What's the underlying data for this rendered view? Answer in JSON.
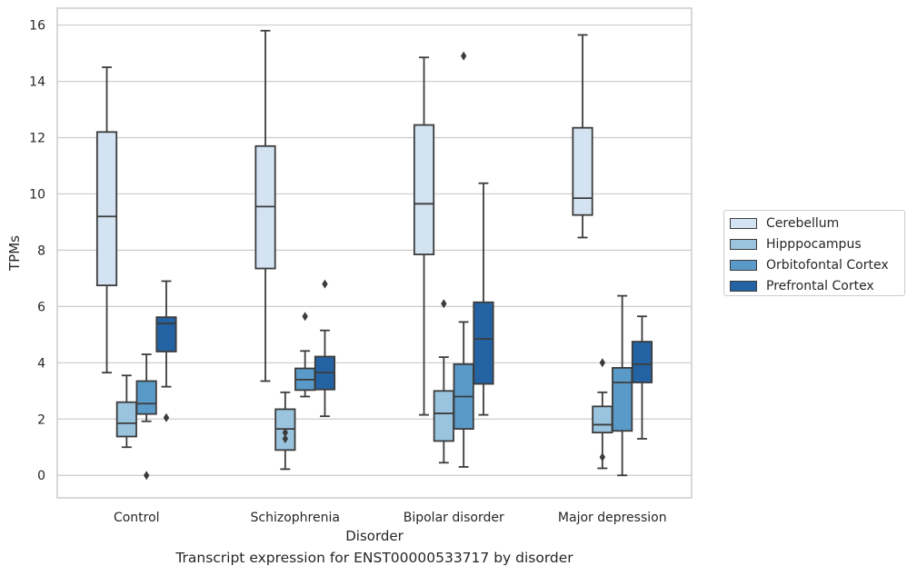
{
  "caption": "Transcript expression for ENST00000533717 by disorder",
  "chart_data": {
    "type": "box",
    "xlabel": "Disorder",
    "ylabel": "TPMs",
    "ylim": [
      -0.8,
      16.6
    ],
    "yticks": [
      0,
      2,
      4,
      6,
      8,
      10,
      12,
      14,
      16
    ],
    "grid": "horizontal",
    "legend_position": "right",
    "categories": [
      "Control",
      "Schizophrenia",
      "Bipolar disorder",
      "Major depression"
    ],
    "series": [
      {
        "name": "Cerebellum",
        "color": "#d3e3f2",
        "boxes": [
          {
            "min": 3.65,
            "q1": 6.75,
            "median": 9.2,
            "q3": 12.2,
            "max": 14.5,
            "outliers": []
          },
          {
            "min": 3.35,
            "q1": 7.35,
            "median": 9.55,
            "q3": 11.7,
            "max": 15.8,
            "outliers": []
          },
          {
            "min": 2.15,
            "q1": 7.85,
            "median": 9.65,
            "q3": 12.45,
            "max": 14.85,
            "outliers": []
          },
          {
            "min": 8.45,
            "q1": 9.25,
            "median": 9.85,
            "q3": 12.35,
            "max": 15.65,
            "outliers": []
          }
        ]
      },
      {
        "name": "Hipppocampus",
        "color": "#9ac3de",
        "boxes": [
          {
            "min": 1.0,
            "q1": 1.38,
            "median": 1.85,
            "q3": 2.6,
            "max": 3.55,
            "outliers": []
          },
          {
            "min": 0.22,
            "q1": 0.9,
            "median": 1.65,
            "q3": 2.35,
            "max": 2.95,
            "outliers": [
              1.3,
              1.52
            ]
          },
          {
            "min": 0.45,
            "q1": 1.22,
            "median": 2.2,
            "q3": 3.0,
            "max": 4.2,
            "outliers": [
              6.1
            ]
          },
          {
            "min": 0.25,
            "q1": 1.52,
            "median": 1.8,
            "q3": 2.45,
            "max": 2.95,
            "outliers": [
              0.65,
              4.0
            ]
          }
        ]
      },
      {
        "name": "Orbitofontal Cortex",
        "color": "#5a9ac8",
        "boxes": [
          {
            "min": 1.92,
            "q1": 2.18,
            "median": 2.55,
            "q3": 3.35,
            "max": 4.3,
            "outliers": [
              0.0
            ]
          },
          {
            "min": 2.8,
            "q1": 3.03,
            "median": 3.4,
            "q3": 3.8,
            "max": 4.42,
            "outliers": [
              5.65
            ]
          },
          {
            "min": 0.3,
            "q1": 1.65,
            "median": 2.8,
            "q3": 3.95,
            "max": 5.45,
            "outliers": [
              14.9
            ]
          },
          {
            "min": 0.0,
            "q1": 1.58,
            "median": 3.3,
            "q3": 3.82,
            "max": 6.38,
            "outliers": []
          }
        ]
      },
      {
        "name": "Prefrontal Cortex",
        "color": "#2463a3",
        "boxes": [
          {
            "min": 3.15,
            "q1": 4.4,
            "median": 5.4,
            "q3": 5.62,
            "max": 6.9,
            "outliers": [
              2.05
            ]
          },
          {
            "min": 2.1,
            "q1": 3.05,
            "median": 3.65,
            "q3": 4.22,
            "max": 5.15,
            "outliers": [
              6.8
            ]
          },
          {
            "min": 2.15,
            "q1": 3.25,
            "median": 4.85,
            "q3": 6.15,
            "max": 10.38,
            "outliers": []
          },
          {
            "min": 1.3,
            "q1": 3.3,
            "median": 3.95,
            "q3": 4.75,
            "max": 5.65,
            "outliers": []
          }
        ]
      }
    ]
  }
}
